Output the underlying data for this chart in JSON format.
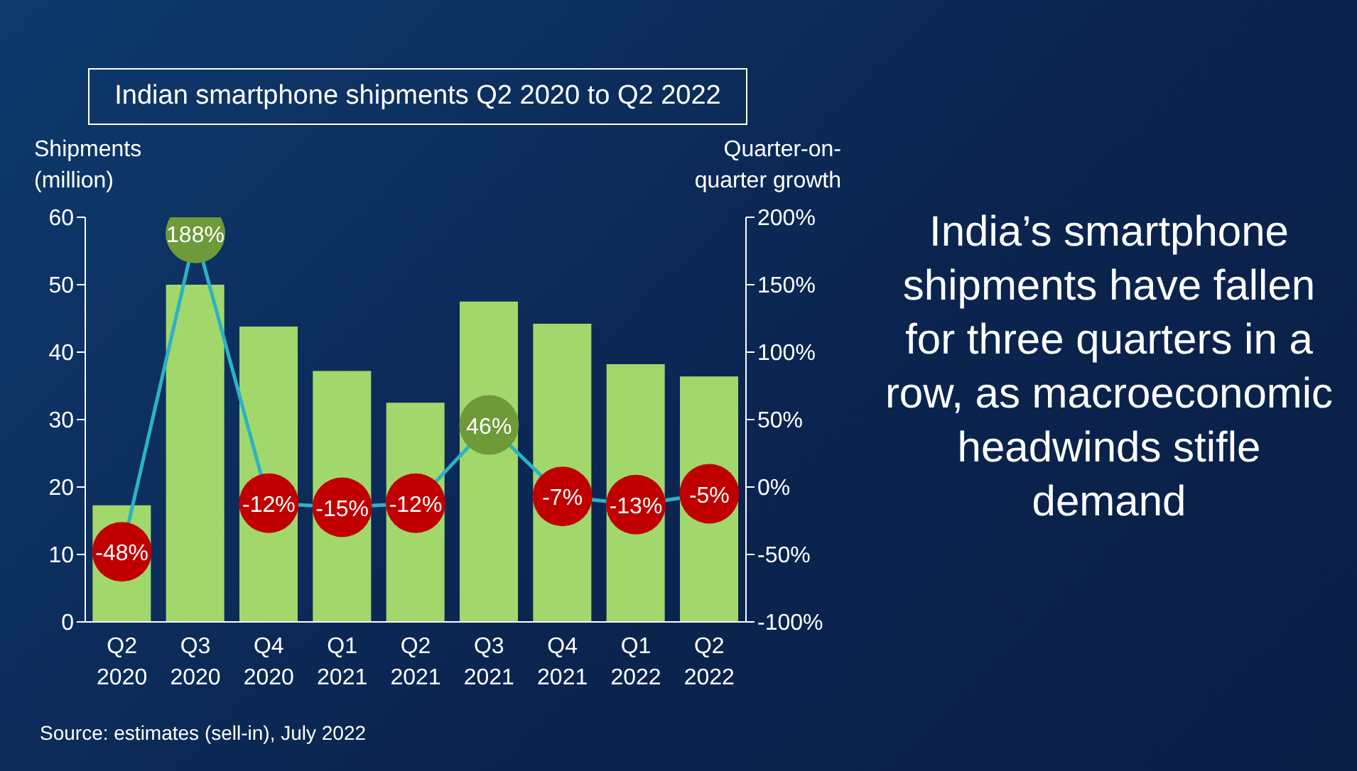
{
  "chart_data": {
    "type": "bar",
    "title": "Indian smartphone shipments Q2 2020 to Q2 2022",
    "ylabel": "Shipments (million)",
    "y2label": "Quarter-on-quarter growth",
    "categories": [
      "Q2 2020",
      "Q3 2020",
      "Q4 2020",
      "Q1 2021",
      "Q2 2021",
      "Q3 2021",
      "Q4 2021",
      "Q1 2022",
      "Q2 2022"
    ],
    "series": [
      {
        "color": "#a2d86b",
        "values": [
          17.3,
          50,
          43.8,
          37.2,
          32.5,
          47.5,
          44.2,
          38.2,
          36.4
        ]
      },
      {
        "type": "line",
        "axis": "y2",
        "color": "#2bb3c5",
        "marker": "circle",
        "colors": [
          "#c00000",
          "#6e9a3a",
          "#c00000",
          "#c00000",
          "#c00000",
          "#6e9a3a",
          "#c00000",
          "#c00000",
          "#c00000"
        ],
        "values": [
          -48,
          188,
          -12,
          -15,
          -12,
          46,
          -7,
          -13,
          -5
        ],
        "value_labels": [
          "-48%",
          "188%",
          "-12%",
          "-15%",
          "-12%",
          "46%",
          "-7%",
          "-13%",
          "-5%"
        ]
      }
    ],
    "ylim": [
      0,
      60
    ],
    "yticks": [
      0,
      10,
      20,
      30,
      40,
      50,
      60
    ],
    "y2lim": [
      -100,
      200
    ],
    "y2ticks": [
      {
        "value": -100,
        "label": "-100%"
      },
      {
        "value": -50,
        "label": "-50%"
      },
      {
        "value": 0,
        "label": "0%"
      },
      {
        "value": 50,
        "label": "50%"
      },
      {
        "value": 100,
        "label": "100%"
      },
      {
        "value": 150,
        "label": "150%"
      },
      {
        "value": 200,
        "label": "200%"
      }
    ],
    "grid": false,
    "legend": false,
    "annotations": [
      "India’s smartphone shipments have fallen for three quarters in a row, as macroeconomic headwinds stifle demand",
      "Source: estimates (sell-in), July 2022"
    ]
  }
}
